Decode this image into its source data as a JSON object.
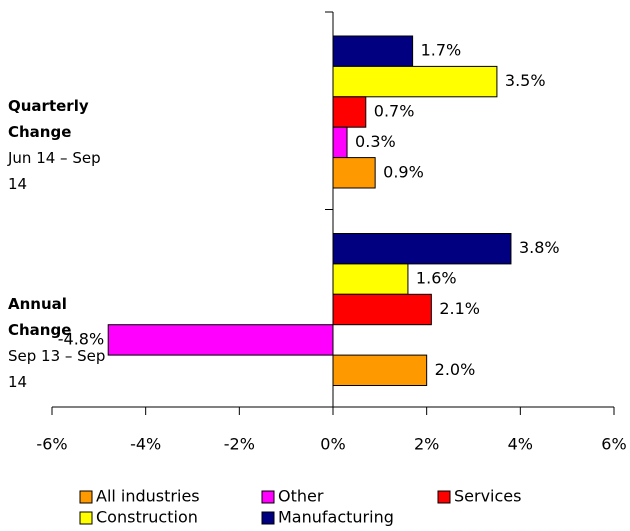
{
  "chart_data": {
    "type": "bar",
    "orientation": "horizontal",
    "categories": [
      "Quarterly Change",
      "Annual Change"
    ],
    "category_subtitles": [
      "Jun 14 – Sep 14",
      "Sep 13 – Sep 14"
    ],
    "series": [
      {
        "name": "Manufacturing",
        "color": "#000080",
        "values": [
          1.7,
          3.8
        ],
        "value_labels": [
          "1.7%",
          "3.8%"
        ]
      },
      {
        "name": "Construction",
        "color": "#ffff00",
        "values": [
          3.5,
          1.6
        ],
        "value_labels": [
          "3.5%",
          "1.6%"
        ]
      },
      {
        "name": "Services",
        "color": "#ff0000",
        "values": [
          0.7,
          2.1
        ],
        "value_labels": [
          "0.7%",
          "2.1%"
        ]
      },
      {
        "name": "Other",
        "color": "#ff00ff",
        "values": [
          0.3,
          -4.8
        ],
        "value_labels": [
          "0.3%",
          "-4.8%"
        ]
      },
      {
        "name": "All industries",
        "color": "#ff9900",
        "values": [
          0.9,
          2.0
        ],
        "value_labels": [
          "0.9%",
          "2.0%"
        ]
      }
    ],
    "xlim": [
      -6,
      6
    ],
    "xticks": [
      {
        "value": -6,
        "label": "-6%"
      },
      {
        "value": -4,
        "label": "-4%"
      },
      {
        "value": -2,
        "label": "-2%"
      },
      {
        "value": 0,
        "label": "0%"
      },
      {
        "value": 2,
        "label": "2%"
      },
      {
        "value": 4,
        "label": "4%"
      },
      {
        "value": 6,
        "label": "6%"
      }
    ],
    "grid": false
  }
}
